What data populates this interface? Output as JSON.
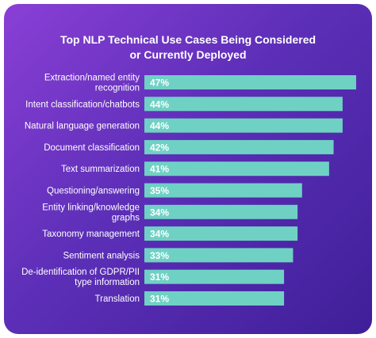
{
  "chart_data": {
    "type": "bar",
    "orientation": "horizontal",
    "title_lines": [
      "Top NLP Technical Use Cases Being Considered",
      "or Currently Deployed"
    ],
    "categories": [
      [
        "Extraction/named entity",
        "recognition"
      ],
      [
        "Intent classification/chatbots"
      ],
      [
        "Natural language generation"
      ],
      [
        "Document classification"
      ],
      [
        "Text summarization"
      ],
      [
        "Questioning/answering"
      ],
      [
        "Entity linking/knowledge",
        "graphs"
      ],
      [
        "Taxonomy management"
      ],
      [
        "Sentiment analysis"
      ],
      [
        "De-identification of GDPR/PII",
        "type information"
      ],
      [
        "Translation"
      ]
    ],
    "values": [
      47,
      44,
      44,
      42,
      41,
      35,
      34,
      34,
      33,
      31,
      31
    ],
    "value_labels": [
      "47%",
      "44%",
      "44%",
      "42%",
      "41%",
      "35%",
      "34%",
      "34%",
      "33%",
      "31%",
      "31%"
    ],
    "unit": "%",
    "legend": "none",
    "grid": false,
    "colors": {
      "bar": "#6fd1c4",
      "background_start": "#8a3fd6",
      "background_end": "#3f1f99",
      "text": "#ffffff"
    }
  }
}
